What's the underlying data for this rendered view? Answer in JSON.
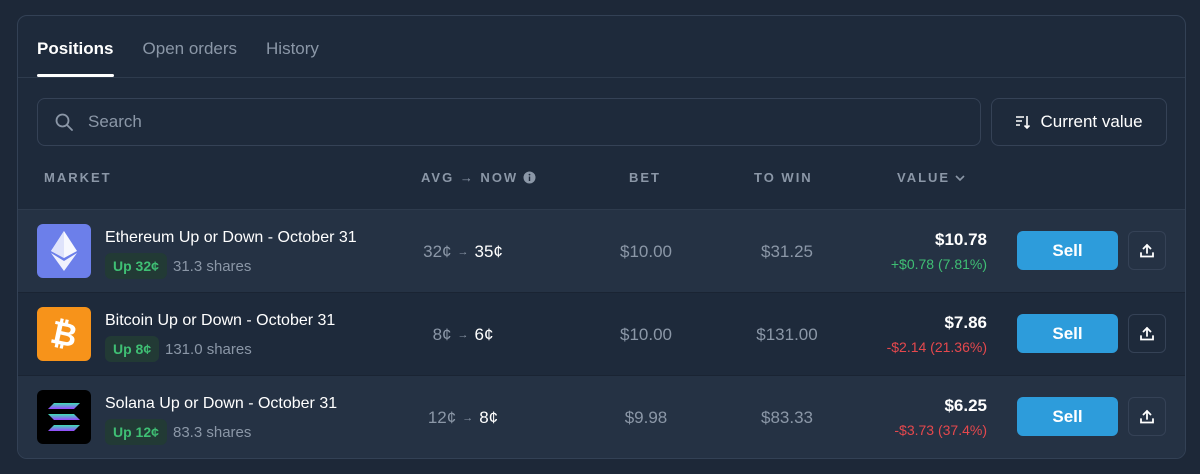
{
  "tabs": [
    {
      "label": "Positions",
      "active": true
    },
    {
      "label": "Open orders"
    },
    {
      "label": "History"
    }
  ],
  "search": {
    "placeholder": "Search",
    "icon": "search-icon"
  },
  "sort": {
    "label": "Current value",
    "icon": "sort-icon"
  },
  "columns": {
    "market": "MARKET",
    "avg_now": "AVG → NOW",
    "bet": "BET",
    "to_win": "TO WIN",
    "value": "VALUE"
  },
  "colors": {
    "accent": "#2d9cdb",
    "positive": "#3fbf74",
    "negative": "#e5484d"
  },
  "rows": [
    {
      "title": "Ethereum Up or Down - October 31",
      "outcome": "Up 32¢",
      "shares": "31.3 shares",
      "avg": "32¢",
      "now": "35¢",
      "bet": "$10.00",
      "to_win": "$31.25",
      "value": "$10.78",
      "change": "+$0.78 (7.81%)",
      "positive": true,
      "logo": "ethereum-icon",
      "sell": "Sell"
    },
    {
      "title": "Bitcoin Up or Down - October 31",
      "outcome": "Up 8¢",
      "shares": "131.0 shares",
      "avg": "8¢",
      "now": "6¢",
      "bet": "$10.00",
      "to_win": "$131.00",
      "value": "$7.86",
      "change": "-$2.14 (21.36%)",
      "positive": false,
      "logo": "bitcoin-icon",
      "sell": "Sell"
    },
    {
      "title": "Solana Up or Down - October 31",
      "outcome": "Up 12¢",
      "shares": "83.3 shares",
      "avg": "12¢",
      "now": "8¢",
      "bet": "$9.98",
      "to_win": "$83.33",
      "value": "$6.25",
      "change": "-$3.73 (37.4%)",
      "positive": false,
      "logo": "solana-icon",
      "sell": "Sell"
    }
  ]
}
